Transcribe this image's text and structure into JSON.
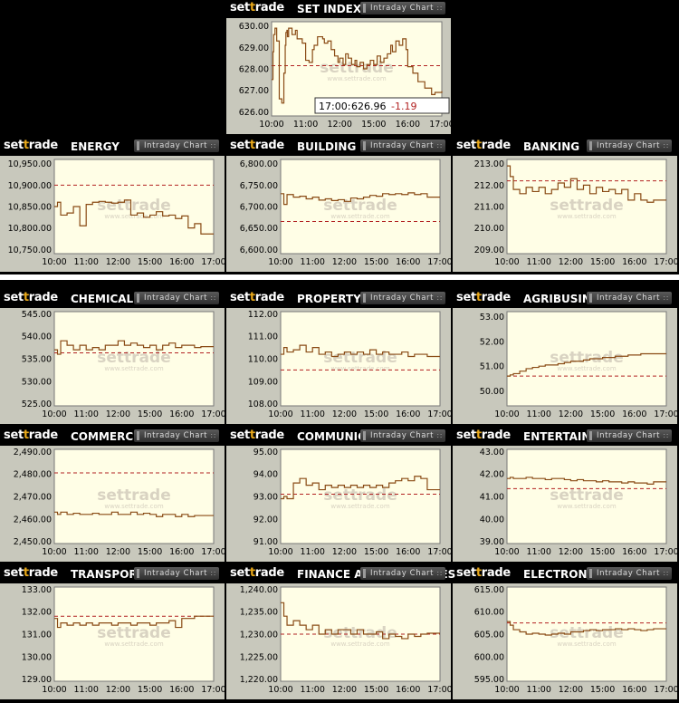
{
  "brand": {
    "pre": "set",
    "mid": "t",
    "post": "rade"
  },
  "button_label": "Intraday Chart",
  "watermark": {
    "main": "settrade",
    "sub": "www.settrade.com"
  },
  "x_ticks": [
    "10:00",
    "11:00",
    "12:00",
    "15:00",
    "16:00",
    "17:00"
  ],
  "colors": {
    "price": "#8a4b15",
    "prev_close": "#b22222",
    "plot_bg": "#fffee6",
    "frame": "#c8c8bc"
  },
  "tooltip": {
    "time": "17:00:",
    "value": "626.96",
    "change": "-1.19"
  },
  "chart_data": [
    {
      "type": "line",
      "title": "SET INDEX",
      "yticks": [
        "630.00",
        "629.00",
        "628.00",
        "627.00",
        "626.00"
      ],
      "ylim": [
        625.8,
        630.2
      ],
      "prev_close": 628.15,
      "x": [
        0,
        0.08,
        0.12,
        0.2,
        0.3,
        0.45,
        0.6,
        0.72,
        0.8,
        0.84,
        0.9,
        0.93,
        1.0,
        1.2,
        1.4,
        1.5,
        1.8,
        2.0,
        2.2,
        2.4,
        2.5,
        2.7,
        2.8,
        3.0,
        3.1,
        3.3,
        3.5,
        3.7,
        3.9,
        4.0,
        4.2,
        4.35,
        4.5,
        4.7,
        4.9,
        5.0,
        5.2,
        5.4,
        5.6,
        5.8,
        6.0,
        6.2,
        6.4,
        6.6,
        6.8,
        7.0,
        7.1,
        7.3,
        7.5,
        7.7,
        7.9,
        8.0,
        8.3,
        8.6,
        9.0,
        9.4,
        9.6,
        10.0
      ],
      "y": [
        627.5,
        628.8,
        629.6,
        629.9,
        629.3,
        626.6,
        626.4,
        627.8,
        629.1,
        629.7,
        629.8,
        629.5,
        629.9,
        629.6,
        629.8,
        629.4,
        629.2,
        628.4,
        628.3,
        628.9,
        629.1,
        629.5,
        629.5,
        629.4,
        629.2,
        629.3,
        628.9,
        628.6,
        628.3,
        628.5,
        628.2,
        628.7,
        628.5,
        628.2,
        628.4,
        628.1,
        628.3,
        628.0,
        628.2,
        628.4,
        628.2,
        628.6,
        628.3,
        628.5,
        628.7,
        629.1,
        628.8,
        629.3,
        629.1,
        629.4,
        628.9,
        628.1,
        627.8,
        627.4,
        627.1,
        626.8,
        626.9,
        626.96
      ]
    },
    {
      "type": "line",
      "title": "ENERGY",
      "yticks": [
        "10,950.00",
        "10,900.00",
        "10,850.00",
        "10,800.00",
        "10,750.00"
      ],
      "ylim": [
        10740,
        10960
      ],
      "prev_close": 10900,
      "x": [
        0,
        0.2,
        0.4,
        0.8,
        1.2,
        1.6,
        2.0,
        2.4,
        2.8,
        3.2,
        3.6,
        4.0,
        4.4,
        4.8,
        5.2,
        5.6,
        6.0,
        6.4,
        6.8,
        7.2,
        7.6,
        8.0,
        8.4,
        8.8,
        9.2,
        9.6,
        10.0
      ],
      "y": [
        10850,
        10860,
        10830,
        10835,
        10850,
        10805,
        10855,
        10860,
        10862,
        10860,
        10858,
        10860,
        10865,
        10830,
        10835,
        10825,
        10830,
        10838,
        10828,
        10830,
        10822,
        10828,
        10800,
        10810,
        10786,
        10786,
        10786
      ]
    },
    {
      "type": "line",
      "title": "BUILDING",
      "yticks": [
        "6,800.00",
        "6,750.00",
        "6,700.00",
        "6,650.00",
        "6,600.00"
      ],
      "ylim": [
        6590,
        6810
      ],
      "prev_close": 6665,
      "x": [
        0,
        0.2,
        0.4,
        0.8,
        1.2,
        1.6,
        2.0,
        2.4,
        2.8,
        3.2,
        3.6,
        4.0,
        4.4,
        4.8,
        5.2,
        5.6,
        6.0,
        6.4,
        6.8,
        7.2,
        7.6,
        8.0,
        8.4,
        8.8,
        9.2,
        9.6,
        10.0
      ],
      "y": [
        6730,
        6705,
        6728,
        6722,
        6724,
        6718,
        6722,
        6715,
        6718,
        6714,
        6716,
        6712,
        6720,
        6718,
        6722,
        6726,
        6724,
        6730,
        6728,
        6730,
        6728,
        6732,
        6728,
        6730,
        6722,
        6722,
        6722
      ]
    },
    {
      "type": "line",
      "title": "BANKING",
      "yticks": [
        "213.00",
        "212.00",
        "211.00",
        "210.00",
        "209.00"
      ],
      "ylim": [
        208.8,
        213.2
      ],
      "prev_close": 212.2,
      "x": [
        0,
        0.2,
        0.4,
        0.8,
        1.2,
        1.6,
        2.0,
        2.4,
        2.8,
        3.2,
        3.6,
        4.0,
        4.4,
        4.8,
        5.2,
        5.6,
        6.0,
        6.4,
        6.8,
        7.2,
        7.6,
        8.0,
        8.4,
        8.8,
        9.2,
        9.6,
        10.0
      ],
      "y": [
        212.9,
        212.4,
        211.8,
        211.6,
        211.9,
        211.7,
        211.9,
        211.6,
        211.8,
        212.1,
        211.9,
        212.3,
        211.8,
        212.0,
        211.6,
        211.9,
        211.7,
        211.8,
        211.6,
        211.8,
        211.3,
        211.6,
        211.3,
        211.2,
        211.3,
        211.3,
        211.3
      ]
    },
    {
      "type": "line",
      "title": "CHEMICALS",
      "yticks": [
        "545.00",
        "540.00",
        "535.00",
        "530.00",
        "525.00"
      ],
      "ylim": [
        524.5,
        545.5
      ],
      "prev_close": 536.3,
      "x": [
        0,
        0.2,
        0.4,
        0.8,
        1.2,
        1.6,
        2.0,
        2.4,
        2.8,
        3.2,
        3.6,
        4.0,
        4.4,
        4.8,
        5.2,
        5.6,
        6.0,
        6.4,
        6.8,
        7.2,
        7.6,
        8.0,
        8.4,
        8.8,
        9.2,
        9.6,
        10.0
      ],
      "y": [
        537,
        536,
        539,
        538,
        537,
        538,
        537,
        537.5,
        537,
        538,
        538,
        539,
        538,
        538.5,
        538,
        537.5,
        538,
        537,
        538,
        538.5,
        537.5,
        538,
        538,
        537.5,
        537.7,
        537.7,
        537.7
      ]
    },
    {
      "type": "line",
      "title": "PROPERTY",
      "yticks": [
        "112.00",
        "111.00",
        "110.00",
        "109.00",
        "108.00"
      ],
      "ylim": [
        107.9,
        112.1
      ],
      "prev_close": 109.5,
      "x": [
        0,
        0.2,
        0.4,
        0.8,
        1.2,
        1.6,
        2.0,
        2.4,
        2.8,
        3.2,
        3.6,
        4.0,
        4.4,
        4.8,
        5.2,
        5.6,
        6.0,
        6.4,
        6.8,
        7.2,
        7.6,
        8.0,
        8.4,
        8.8,
        9.2,
        9.6,
        10.0
      ],
      "y": [
        110.2,
        110.5,
        110.3,
        110.4,
        110.6,
        110.3,
        110.5,
        110.2,
        110.3,
        110.1,
        110.2,
        110.3,
        110.2,
        110.3,
        110.2,
        110.4,
        110.2,
        110.3,
        110.2,
        110.2,
        110.3,
        110.1,
        110.2,
        110.2,
        110.1,
        110.1,
        110.1
      ]
    },
    {
      "type": "line",
      "title": "AGRIBUSINESS",
      "yticks": [
        "53.00",
        "52.00",
        "51.00",
        "50.00"
      ],
      "ylim": [
        49.4,
        53.2
      ],
      "prev_close": 50.6,
      "x": [
        0,
        0.2,
        0.4,
        0.8,
        1.2,
        1.6,
        2.0,
        2.4,
        2.8,
        3.2,
        3.6,
        4.0,
        4.4,
        4.8,
        5.2,
        5.6,
        6.0,
        6.4,
        6.8,
        7.2,
        7.6,
        8.0,
        8.4,
        8.8,
        9.2,
        9.6,
        10.0
      ],
      "y": [
        50.6,
        50.65,
        50.7,
        50.8,
        50.9,
        50.95,
        51.0,
        51.05,
        51.05,
        51.1,
        51.15,
        51.2,
        51.2,
        51.25,
        51.3,
        51.3,
        51.35,
        51.35,
        51.4,
        51.4,
        51.45,
        51.45,
        51.5,
        51.5,
        51.5,
        51.5,
        51.5
      ]
    },
    {
      "type": "line",
      "title": "COMMERCE",
      "yticks": [
        "2,490.00",
        "2,480.00",
        "2,470.00",
        "2,460.00",
        "2,450.00"
      ],
      "ylim": [
        2449,
        2491
      ],
      "prev_close": 2480.5,
      "x": [
        0,
        0.2,
        0.4,
        0.8,
        1.2,
        1.6,
        2.0,
        2.4,
        2.8,
        3.2,
        3.6,
        4.0,
        4.4,
        4.8,
        5.2,
        5.6,
        6.0,
        6.4,
        6.8,
        7.2,
        7.6,
        8.0,
        8.4,
        8.8,
        9.2,
        9.6,
        10.0
      ],
      "y": [
        2463,
        2462,
        2463,
        2462,
        2462.5,
        2462,
        2462,
        2462.5,
        2462,
        2462,
        2463,
        2462,
        2462,
        2463,
        2462,
        2462.5,
        2462,
        2461,
        2462,
        2462,
        2461,
        2462,
        2461,
        2461.5,
        2461.5,
        2461.5,
        2461.5
      ]
    },
    {
      "type": "line",
      "title": "COMMUNICATION",
      "yticks": [
        "95.00",
        "94.00",
        "93.00",
        "92.00",
        "91.00"
      ],
      "ylim": [
        90.9,
        95.1
      ],
      "prev_close": 93.1,
      "x": [
        0,
        0.2,
        0.4,
        0.8,
        1.2,
        1.6,
        2.0,
        2.4,
        2.8,
        3.2,
        3.6,
        4.0,
        4.4,
        4.8,
        5.2,
        5.6,
        6.0,
        6.4,
        6.8,
        7.2,
        7.6,
        8.0,
        8.4,
        8.8,
        9.2,
        9.6,
        10.0
      ],
      "y": [
        92.9,
        93.0,
        92.9,
        93.6,
        93.8,
        93.5,
        93.6,
        93.3,
        93.5,
        93.4,
        93.5,
        93.4,
        93.5,
        93.4,
        93.5,
        93.4,
        93.5,
        93.4,
        93.6,
        93.7,
        93.8,
        93.7,
        93.9,
        93.8,
        93.3,
        93.3,
        93.3
      ]
    },
    {
      "type": "line",
      "title": "ENTERTAINMENT",
      "yticks": [
        "43.00",
        "42.00",
        "41.00",
        "40.00",
        "39.00"
      ],
      "ylim": [
        38.9,
        43.1
      ],
      "prev_close": 41.35,
      "x": [
        0,
        0.2,
        0.4,
        0.8,
        1.2,
        1.6,
        2.0,
        2.4,
        2.8,
        3.2,
        3.6,
        4.0,
        4.4,
        4.8,
        5.2,
        5.6,
        6.0,
        6.4,
        6.8,
        7.2,
        7.6,
        8.0,
        8.4,
        8.8,
        9.2,
        9.6,
        10.0
      ],
      "y": [
        41.8,
        41.85,
        41.8,
        41.8,
        41.85,
        41.8,
        41.8,
        41.75,
        41.8,
        41.8,
        41.75,
        41.7,
        41.75,
        41.7,
        41.7,
        41.65,
        41.7,
        41.65,
        41.65,
        41.6,
        41.65,
        41.6,
        41.6,
        41.55,
        41.65,
        41.65,
        41.65
      ]
    },
    {
      "type": "line",
      "title": "TRANSPORTATION",
      "yticks": [
        "133.00",
        "132.00",
        "131.00",
        "130.00",
        "129.00"
      ],
      "ylim": [
        128.9,
        133.1
      ],
      "prev_close": 131.8,
      "x": [
        0,
        0.2,
        0.4,
        0.8,
        1.2,
        1.6,
        2.0,
        2.4,
        2.8,
        3.2,
        3.6,
        4.0,
        4.4,
        4.8,
        5.2,
        5.6,
        6.0,
        6.4,
        6.8,
        7.2,
        7.6,
        8.0,
        8.4,
        8.8,
        9.2,
        9.6,
        10.0
      ],
      "y": [
        131.7,
        131.3,
        131.5,
        131.4,
        131.5,
        131.4,
        131.5,
        131.4,
        131.5,
        131.5,
        131.4,
        131.5,
        131.5,
        131.4,
        131.5,
        131.5,
        131.4,
        131.5,
        131.5,
        131.6,
        131.3,
        131.7,
        131.7,
        131.8,
        131.8,
        131.8,
        131.8
      ]
    },
    {
      "type": "line",
      "title": "FINANCE AND SECURITIES",
      "yticks": [
        "1,240.00",
        "1,235.00",
        "1,230.00",
        "1,225.00",
        "1,220.00"
      ],
      "ylim": [
        1219.5,
        1240.5
      ],
      "prev_close": 1230,
      "x": [
        0,
        0.2,
        0.4,
        0.8,
        1.2,
        1.6,
        2.0,
        2.4,
        2.8,
        3.2,
        3.6,
        4.0,
        4.4,
        4.8,
        5.2,
        5.6,
        6.0,
        6.4,
        6.8,
        7.2,
        7.6,
        8.0,
        8.4,
        8.8,
        9.2,
        9.6,
        10.0
      ],
      "y": [
        1237,
        1234,
        1232,
        1233,
        1232,
        1231,
        1232,
        1230,
        1231,
        1230,
        1231,
        1231,
        1230,
        1231,
        1230,
        1230,
        1230.5,
        1229,
        1230,
        1229.5,
        1229,
        1230,
        1229.5,
        1230,
        1230.2,
        1230.2,
        1230.2
      ]
    },
    {
      "type": "line",
      "title": "ELECTRONIC",
      "yticks": [
        "615.00",
        "610.00",
        "605.00",
        "600.00",
        "595.00"
      ],
      "ylim": [
        594.5,
        615.5
      ],
      "prev_close": 607.5,
      "x": [
        0,
        0.2,
        0.4,
        0.8,
        1.2,
        1.6,
        2.0,
        2.4,
        2.8,
        3.2,
        3.6,
        4.0,
        4.4,
        4.8,
        5.2,
        5.6,
        6.0,
        6.4,
        6.8,
        7.2,
        7.6,
        8.0,
        8.4,
        8.8,
        9.2,
        9.6,
        10.0
      ],
      "y": [
        607.8,
        607,
        606,
        605.5,
        605,
        605.2,
        605,
        604.8,
        605,
        605.2,
        605,
        605.5,
        605.5,
        605.8,
        606,
        605.8,
        606,
        606,
        606.2,
        606,
        606.2,
        606,
        605.8,
        606,
        606.2,
        606.2,
        606.2
      ]
    }
  ]
}
